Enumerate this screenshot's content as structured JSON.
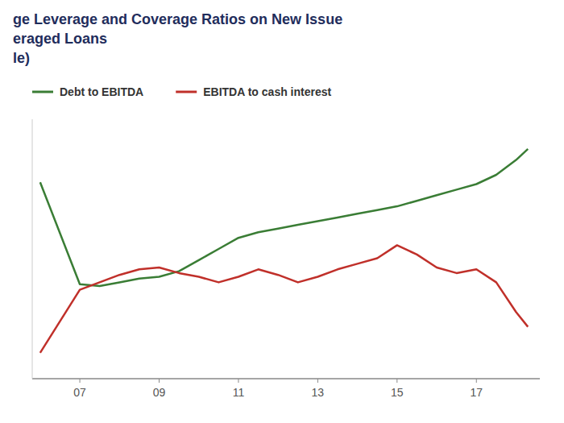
{
  "chart_data": {
    "type": "line",
    "title": "ge Leverage and Coverage Ratios on New Issue\neraged Loans\nle)",
    "x": [
      2006,
      2007,
      2007.5,
      2008,
      2008.5,
      2009,
      2009.5,
      2010,
      2010.5,
      2011,
      2011.5,
      2012,
      2012.5,
      2013,
      2013.5,
      2014,
      2014.5,
      2015,
      2015.5,
      2016,
      2016.5,
      2017,
      2017.5,
      2018,
      2018.3
    ],
    "series": [
      {
        "name": "Debt to EBITDA",
        "color": "#3a7d35",
        "values": [
          5.8,
          3.05,
          3.0,
          3.1,
          3.2,
          3.25,
          3.4,
          3.7,
          4.0,
          4.3,
          4.45,
          4.55,
          4.65,
          4.75,
          4.85,
          4.95,
          5.05,
          5.15,
          5.3,
          5.45,
          5.6,
          5.75,
          6.0,
          6.4,
          6.7
        ]
      },
      {
        "name": "EBITDA to cash interest",
        "color": "#c0302a",
        "values": [
          1.2,
          2.9,
          3.1,
          3.3,
          3.45,
          3.5,
          3.35,
          3.25,
          3.1,
          3.25,
          3.45,
          3.3,
          3.1,
          3.25,
          3.45,
          3.6,
          3.75,
          4.1,
          3.85,
          3.5,
          3.35,
          3.45,
          3.1,
          2.3,
          1.9
        ]
      }
    ],
    "xlim": [
      2005.8,
      2018.6
    ],
    "ylim": [
      0.5,
      7.5
    ],
    "xticks": [
      {
        "value": 2007,
        "label": "07"
      },
      {
        "value": 2009,
        "label": "09"
      },
      {
        "value": 2011,
        "label": "11"
      },
      {
        "value": 2013,
        "label": "13"
      },
      {
        "value": 2015,
        "label": "15"
      },
      {
        "value": 2017,
        "label": "17"
      }
    ],
    "yticks": [],
    "tick_labels": "x",
    "grid": false,
    "legend": "top"
  }
}
